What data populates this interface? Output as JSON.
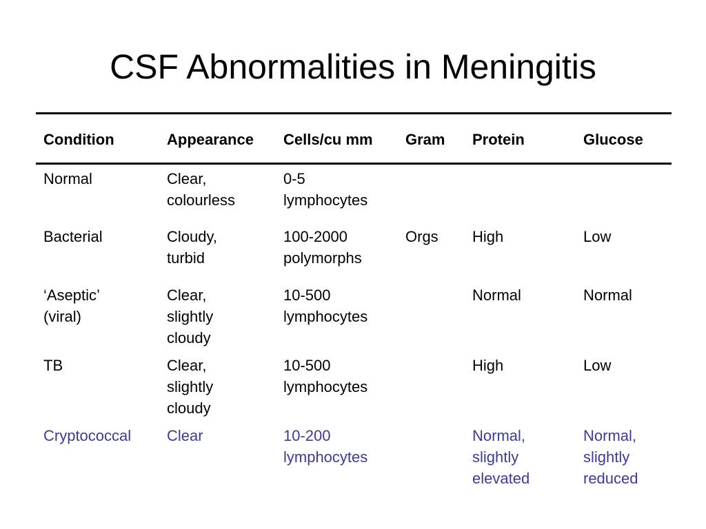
{
  "title": "CSF Abnormalities in Meningitis",
  "colors": {
    "highlight_row": "#3b3b9e"
  },
  "table": {
    "headers": [
      "Condition",
      "Appearance",
      "Cells/cu mm",
      "Gram",
      "Protein",
      "Glucose"
    ],
    "rows": [
      [
        "Normal",
        "Clear,\ncolourless",
        "0-5\nlymphocytes",
        "",
        "",
        ""
      ],
      [
        "Bacterial",
        "Cloudy,\nturbid",
        "100-2000\npolymorphs",
        "Orgs",
        "High",
        "Low"
      ],
      [
        "‘Aseptic’\n(viral)",
        "Clear,\nslightly\ncloudy",
        "10-500\nlymphocytes",
        "",
        "Normal",
        "Normal"
      ],
      [
        "TB",
        "Clear,\nslightly\ncloudy",
        "10-500\nlymphocytes",
        "",
        "High",
        "Low"
      ],
      [
        "Cryptococcal",
        "Clear",
        "10-200\nlymphocytes",
        "",
        "Normal,\nslightly\nelevated",
        "Normal,\nslightly\nreduced"
      ]
    ]
  }
}
